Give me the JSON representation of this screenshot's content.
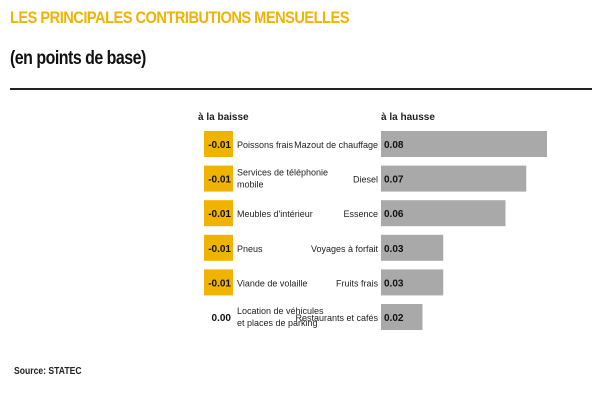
{
  "title": "LES PRINCIPALES CONTRIBUTIONS MENSUELLES",
  "subtitle": "(en points de base)",
  "source": "Source: STATEC",
  "colors": {
    "accent": "#f0b400",
    "increase_bar": "#a9a9a9",
    "title": "#f0b400",
    "text": "#222222"
  },
  "chart_data": [
    {
      "type": "bar",
      "title": "à la baisse",
      "orientation": "horizontal",
      "categories": [
        "Poissons frais",
        "Services de téléphonie mobile",
        "Meubles d'intérieur",
        "Pneus",
        "Viande de volaille",
        "Location de véhicules et places de parking"
      ],
      "category_lines": [
        [
          "Poissons frais"
        ],
        [
          "Services de téléphonie",
          "mobile"
        ],
        [
          "Meubles d'intérieur"
        ],
        [
          "Pneus"
        ],
        [
          "Viande de volaille"
        ],
        [
          "Location de véhicules",
          "et places de parking"
        ]
      ],
      "values": [
        -0.01,
        -0.01,
        -0.01,
        -0.01,
        -0.01,
        0.0
      ],
      "value_labels": [
        "-0.01",
        "-0.01",
        "-0.01",
        "-0.01",
        "-0.01",
        "0.00"
      ],
      "color": "#f0b400"
    },
    {
      "type": "bar",
      "title": "à la hausse",
      "orientation": "horizontal",
      "categories": [
        "Mazout de chauffage",
        "Diesel",
        "Essence",
        "Voyages à forfait",
        "Fruits frais",
        "Restaurants et cafés"
      ],
      "values": [
        0.08,
        0.07,
        0.06,
        0.03,
        0.03,
        0.02
      ],
      "value_labels": [
        "0.08",
        "0.07",
        "0.06",
        "0.03",
        "0.03",
        "0.02"
      ],
      "color": "#a9a9a9"
    }
  ]
}
